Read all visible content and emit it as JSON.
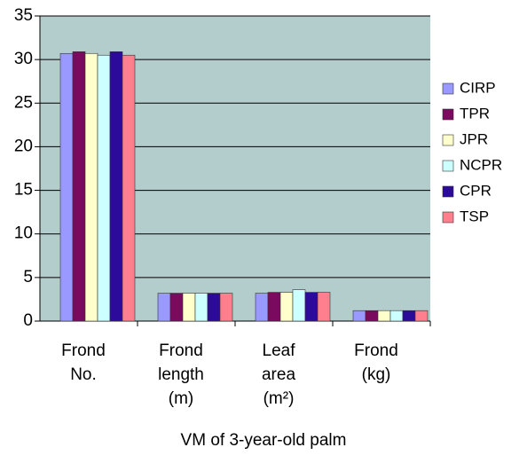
{
  "chart_data": {
    "type": "bar",
    "title": "VM of 3-year-old palm",
    "categories": [
      "Frond No.",
      "Frond length (m)",
      "Leaf area (m²)",
      "Frond (kg)"
    ],
    "series": [
      {
        "name": "CIRP",
        "color": "#9999ff",
        "values": [
          30.7,
          3.2,
          3.2,
          1.2
        ]
      },
      {
        "name": "TPR",
        "color": "#7a0a5e",
        "values": [
          30.9,
          3.2,
          3.3,
          1.2
        ]
      },
      {
        "name": "JPR",
        "color": "#ffffcc",
        "values": [
          30.7,
          3.2,
          3.3,
          1.2
        ]
      },
      {
        "name": "NCPR",
        "color": "#ccffff",
        "values": [
          30.5,
          3.2,
          3.6,
          1.2
        ]
      },
      {
        "name": "CPR",
        "color": "#2c0a9a",
        "values": [
          30.9,
          3.2,
          3.3,
          1.2
        ]
      },
      {
        "name": "TSP",
        "color": "#ff7f8f",
        "values": [
          30.5,
          3.2,
          3.3,
          1.2
        ]
      }
    ],
    "ylim": [
      0,
      35
    ],
    "yticks": [
      0,
      5,
      10,
      15,
      20,
      25,
      30,
      35
    ],
    "grid": true,
    "legend": "right",
    "plot_background": "#b3cccc"
  }
}
